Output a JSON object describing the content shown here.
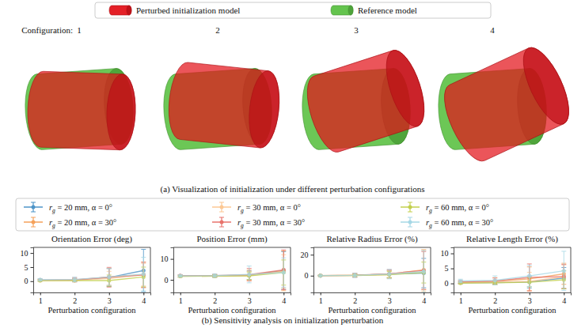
{
  "panel_a": {
    "legend": [
      {
        "name": "Perturbed initialization model",
        "color": "#e3141b"
      },
      {
        "name": "Reference model",
        "color": "#5cc144"
      }
    ],
    "label": "Configuration:",
    "configurations": [
      1,
      2,
      3,
      4
    ],
    "caption": "(a) Visualization of initialization under different perturbation configurations"
  },
  "chart_data": [
    {
      "type": "line",
      "title": "Orientation Error (deg)",
      "x_label": "Perturbation configuration",
      "x": [
        1,
        2,
        3,
        4
      ],
      "xlim": [
        0.8,
        4.2
      ],
      "xticks": [
        1,
        2,
        3,
        4
      ],
      "ylim": [
        -4,
        12
      ],
      "yticks": [
        0,
        5,
        10
      ],
      "marker": "circle",
      "legend": "top",
      "series": [
        {
          "name": "rg = 20 mm, α = 0°",
          "color": "#4e95c8",
          "values": [
            0.4,
            0.4,
            1.3,
            3.8
          ],
          "errors": [
            0.3,
            0.5,
            3.2,
            7.5
          ]
        },
        {
          "name": "rg = 20 mm, α = 30°",
          "color": "#f5a15a",
          "values": [
            0.3,
            0.4,
            1.5,
            2.3
          ],
          "errors": [
            0.3,
            0.6,
            3.0,
            4.5
          ]
        },
        {
          "name": "rg = 30 mm, α = 0°",
          "color": "#fcc894",
          "values": [
            0.3,
            0.3,
            1.0,
            2.3
          ],
          "errors": [
            0.3,
            0.5,
            2.5,
            4.0
          ]
        },
        {
          "name": "rg = 30 mm, α = 30°",
          "color": "#e8736c",
          "values": [
            0.4,
            0.5,
            1.4,
            2.2
          ],
          "errors": [
            0.3,
            0.8,
            3.5,
            4.5
          ]
        },
        {
          "name": "rg = 60 mm, α = 0°",
          "color": "#c3d04e",
          "values": [
            0.2,
            0.2,
            0.2,
            1.5
          ],
          "errors": [
            0.2,
            0.3,
            2.0,
            3.5
          ]
        },
        {
          "name": "rg = 60 mm, α = 30°",
          "color": "#a6d8e6",
          "values": [
            0.5,
            0.6,
            1.5,
            2.5
          ],
          "errors": [
            0.4,
            0.8,
            3.0,
            6.0
          ]
        }
      ]
    },
    {
      "type": "line",
      "title": "Position Error (mm)",
      "x_label": "Perturbation configuration",
      "x": [
        1,
        2,
        3,
        4
      ],
      "xlim": [
        0.8,
        4.2
      ],
      "xticks": [
        1,
        2,
        3,
        4
      ],
      "ylim": [
        -6,
        15.5
      ],
      "yticks": [
        0,
        10
      ],
      "marker": "circle",
      "series": [
        {
          "color": "#4e95c8",
          "values": [
            1.8,
            1.9,
            2.2,
            4.5
          ],
          "errors": [
            0.4,
            0.6,
            2.0,
            9.0
          ]
        },
        {
          "color": "#f5a15a",
          "values": [
            1.8,
            1.9,
            2.2,
            4.3
          ],
          "errors": [
            0.4,
            0.6,
            2.5,
            9.5
          ]
        },
        {
          "color": "#fcc894",
          "values": [
            1.7,
            1.8,
            2.0,
            4.0
          ],
          "errors": [
            0.4,
            0.6,
            2.0,
            8.0
          ]
        },
        {
          "color": "#e8736c",
          "values": [
            2.0,
            2.0,
            2.5,
            4.8
          ],
          "errors": [
            0.5,
            0.7,
            3.0,
            9.5
          ]
        },
        {
          "color": "#c3d04e",
          "values": [
            1.7,
            1.8,
            1.9,
            3.5
          ],
          "errors": [
            0.4,
            0.6,
            1.8,
            6.0
          ]
        },
        {
          "color": "#a6d8e6",
          "values": [
            1.9,
            2.0,
            2.6,
            3.5
          ],
          "errors": [
            0.5,
            0.8,
            4.0,
            7.0
          ]
        }
      ]
    },
    {
      "type": "line",
      "title": "Relative Radius Error (%)",
      "x_label": "Perturbation configuration",
      "x": [
        1,
        2,
        3,
        4
      ],
      "xlim": [
        0.8,
        4.2
      ],
      "xticks": [
        1,
        2,
        3,
        4
      ],
      "ylim": [
        -16,
        27
      ],
      "yticks": [
        0,
        20
      ],
      "marker": "circle",
      "series": [
        {
          "color": "#4e95c8",
          "values": [
            0.1,
            0.3,
            1.5,
            2.5
          ],
          "errors": [
            0.3,
            1.5,
            3.5,
            14.0
          ]
        },
        {
          "color": "#f5a15a",
          "values": [
            0.1,
            0.3,
            1.5,
            5.5
          ],
          "errors": [
            0.3,
            1.5,
            3.5,
            19.0
          ]
        },
        {
          "color": "#fcc894",
          "values": [
            0.1,
            0.2,
            1.0,
            5.0
          ],
          "errors": [
            0.3,
            1.5,
            3.5,
            20.0
          ]
        },
        {
          "color": "#e8736c",
          "values": [
            0.1,
            0.4,
            1.8,
            5.0
          ],
          "errors": [
            0.3,
            2.0,
            4.0,
            18.0
          ]
        },
        {
          "color": "#c3d04e",
          "values": [
            0.1,
            0.2,
            1.0,
            3.0
          ],
          "errors": [
            0.3,
            1.0,
            3.0,
            10.0
          ]
        },
        {
          "color": "#a6d8e6",
          "values": [
            0.1,
            0.3,
            1.5,
            4.0
          ],
          "errors": [
            0.3,
            2.0,
            4.5,
            20.0
          ]
        }
      ]
    },
    {
      "type": "line",
      "title": "Relative Length Error (%)",
      "x_label": "Perturbation configuration",
      "x": [
        1,
        2,
        3,
        4
      ],
      "xlim": [
        0.8,
        4.2
      ],
      "xticks": [
        1,
        2,
        3,
        4
      ],
      "ylim": [
        -3,
        12
      ],
      "yticks": [
        0,
        5,
        10
      ],
      "marker": "circle",
      "series": [
        {
          "color": "#4e95c8",
          "values": [
            0.2,
            0.3,
            0.5,
            1.8
          ],
          "errors": [
            0.3,
            0.6,
            2.0,
            3.5
          ]
        },
        {
          "color": "#f5a15a",
          "values": [
            0.4,
            0.7,
            1.5,
            3.2
          ],
          "errors": [
            0.4,
            1.2,
            4.0,
            3.5
          ]
        },
        {
          "color": "#fcc894",
          "values": [
            0.3,
            0.4,
            0.7,
            2.2
          ],
          "errors": [
            0.4,
            0.8,
            3.0,
            4.0
          ]
        },
        {
          "color": "#e8736c",
          "values": [
            0.5,
            0.8,
            2.0,
            2.3
          ],
          "errors": [
            0.5,
            1.0,
            4.5,
            4.0
          ]
        },
        {
          "color": "#c3d04e",
          "values": [
            0.1,
            0.2,
            0.4,
            1.2
          ],
          "errors": [
            0.2,
            0.5,
            1.5,
            3.0
          ]
        },
        {
          "color": "#a6d8e6",
          "values": [
            0.8,
            1.0,
            2.5,
            4.2
          ],
          "errors": [
            0.6,
            1.5,
            3.5,
            6.5
          ]
        }
      ]
    }
  ],
  "panel_b": {
    "caption": "(b) Sensitivity analysis on initialization perturbation"
  }
}
